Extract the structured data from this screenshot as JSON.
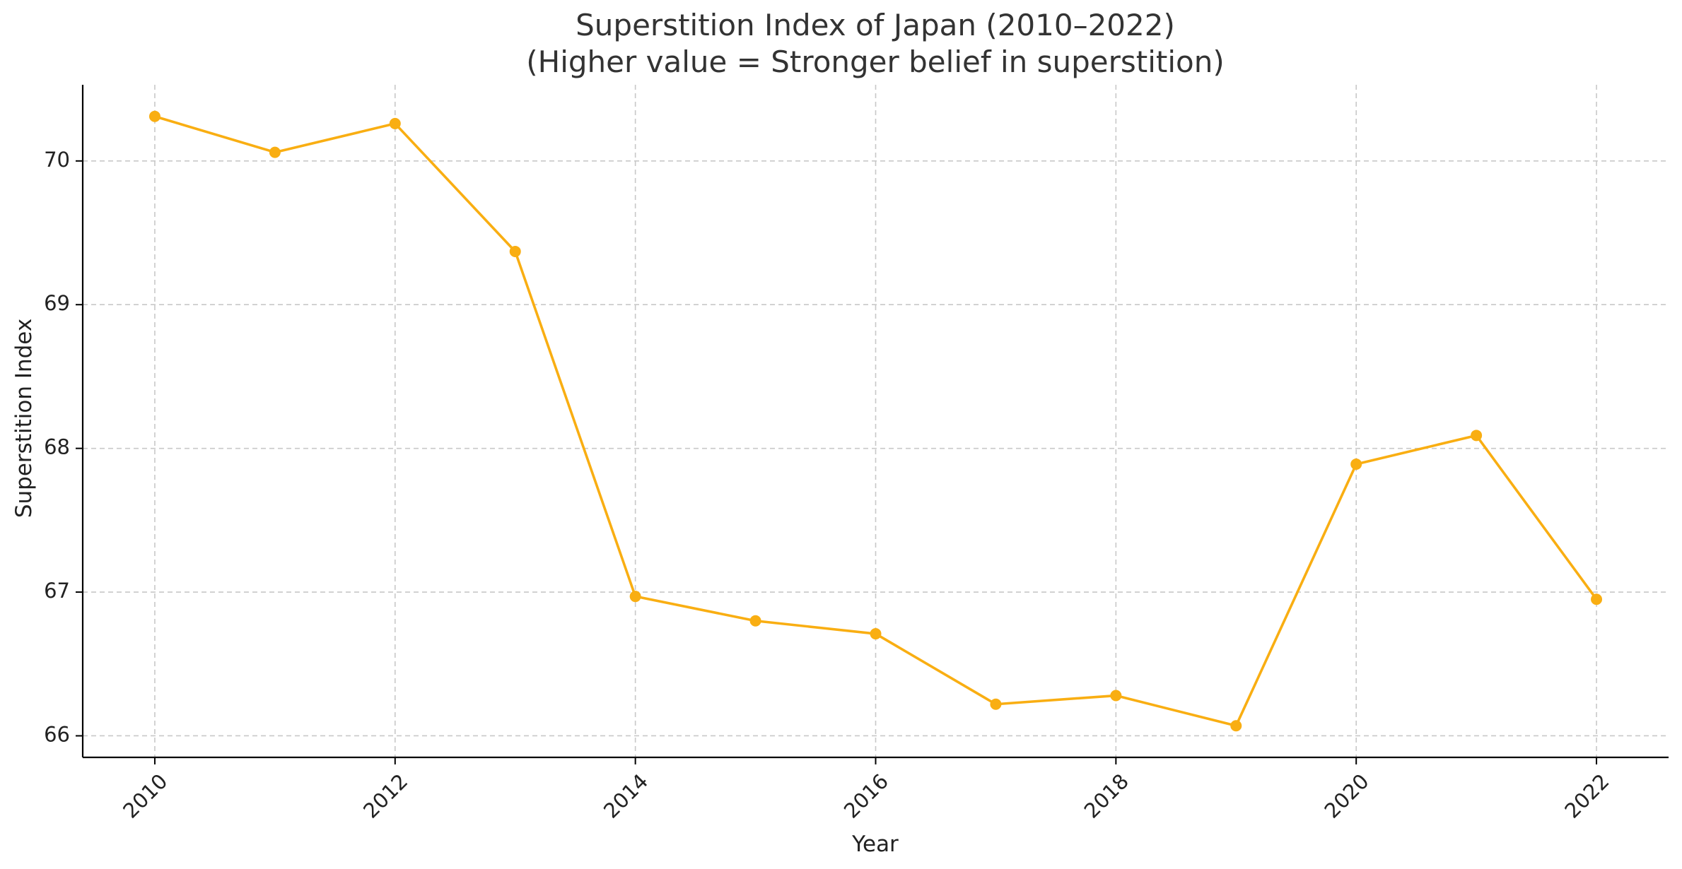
{
  "chart_data": {
    "type": "line",
    "title": "Superstition Index of Japan (2010–2022)",
    "subtitle": "(Higher value = Stronger belief in superstition)",
    "xlabel": "Year",
    "ylabel": "Superstition Index",
    "x": [
      2010,
      2011,
      2012,
      2013,
      2014,
      2015,
      2016,
      2017,
      2018,
      2019,
      2020,
      2021,
      2022
    ],
    "series": [
      {
        "color": "#F9AE12",
        "values": [
          70.31,
          70.06,
          70.26,
          69.37,
          66.97,
          66.8,
          66.71,
          66.22,
          66.28,
          66.07,
          67.89,
          68.09,
          66.95
        ]
      }
    ],
    "xlim": [
      2009.4,
      2022.6
    ],
    "ylim": [
      65.85,
      70.53
    ],
    "xticks": [
      2010,
      2012,
      2014,
      2016,
      2018,
      2020,
      2022
    ],
    "yticks": [
      66,
      67,
      68,
      69,
      70
    ],
    "xtick_rotation": -45,
    "grid": true,
    "legend": false
  }
}
